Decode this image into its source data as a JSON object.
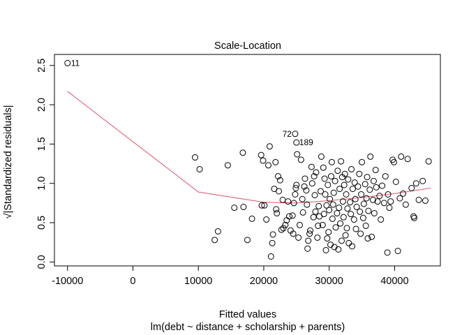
{
  "chart_data": {
    "type": "scatter",
    "title": "Scale-Location",
    "xlabel": "Fitted values",
    "sublabel": "lm(debt ~ distance + scholarship + parents)",
    "ylabel": "√|Standardized residuals|",
    "xlim": [
      -12000,
      47000
    ],
    "ylim": [
      -0.05,
      2.64
    ],
    "x_ticks": [
      -10000,
      0,
      10000,
      20000,
      30000,
      40000
    ],
    "x_tick_labels": [
      "-10000",
      "0",
      "10000",
      "20000",
      "30000",
      "40000"
    ],
    "y_ticks": [
      0.0,
      0.5,
      1.0,
      1.5,
      2.0,
      2.5
    ],
    "y_tick_labels": [
      "0.0",
      "0.5",
      "1.0",
      "1.5",
      "2.0",
      "2.5"
    ],
    "grid": false,
    "point_color": "#000000",
    "smooth_color": "#DF536B",
    "annotations": [
      {
        "label": "11",
        "x": -10000,
        "y": 2.53
      },
      {
        "label": "72",
        "x": 24800,
        "y": 1.63
      },
      {
        "label": "189",
        "x": 25000,
        "y": 1.52
      }
    ],
    "smooth": {
      "x": [
        -10000,
        10000,
        20000,
        25000,
        30000,
        35000,
        40000,
        45500
      ],
      "y": [
        2.17,
        0.89,
        0.76,
        0.75,
        0.78,
        0.82,
        0.87,
        0.94
      ]
    },
    "points": [
      [
        -10000,
        2.53
      ],
      [
        24800,
        1.63
      ],
      [
        25000,
        1.52
      ],
      [
        9500,
        1.33
      ],
      [
        10200,
        1.18
      ],
      [
        12500,
        0.28
      ],
      [
        13000,
        0.39
      ],
      [
        14500,
        1.23
      ],
      [
        15500,
        0.69
      ],
      [
        16800,
        1.39
      ],
      [
        16900,
        0.7
      ],
      [
        17500,
        0.28
      ],
      [
        18200,
        0.55
      ],
      [
        19600,
        1.36
      ],
      [
        19700,
        0.72
      ],
      [
        19900,
        1.29
      ],
      [
        20100,
        0.72
      ],
      [
        20400,
        0.54
      ],
      [
        20700,
        1.23
      ],
      [
        20900,
        1.47
      ],
      [
        21100,
        0.07
      ],
      [
        21300,
        0.24
      ],
      [
        21400,
        0.35
      ],
      [
        21600,
        0.93
      ],
      [
        21800,
        1.27
      ],
      [
        21900,
        0.67
      ],
      [
        22000,
        0.62
      ],
      [
        22200,
        1.09
      ],
      [
        22300,
        0.9
      ],
      [
        22500,
        1.04
      ],
      [
        22700,
        0.41
      ],
      [
        22900,
        0.79
      ],
      [
        23000,
        0.43
      ],
      [
        23300,
        0.47
      ],
      [
        23500,
        0.53
      ],
      [
        23700,
        0.77
      ],
      [
        23900,
        0.58
      ],
      [
        24100,
        0.4
      ],
      [
        24400,
        0.59
      ],
      [
        24500,
        0.36
      ],
      [
        24600,
        0.75
      ],
      [
        24800,
        0.86
      ],
      [
        24900,
        0.94
      ],
      [
        25000,
        0.98
      ],
      [
        25100,
        1.37
      ],
      [
        25300,
        0.31
      ],
      [
        25500,
        0.47
      ],
      [
        25700,
        1.3
      ],
      [
        25900,
        0.8
      ],
      [
        26000,
        0.63
      ],
      [
        26200,
        0.96
      ],
      [
        26300,
        1.06
      ],
      [
        26500,
        0.91
      ],
      [
        26600,
        0.73
      ],
      [
        26700,
        0.17
      ],
      [
        26800,
        0.27
      ],
      [
        27000,
        0.36
      ],
      [
        27100,
        0.4
      ],
      [
        27300,
        1.21
      ],
      [
        27400,
        1.0
      ],
      [
        27600,
        0.57
      ],
      [
        27700,
        1.09
      ],
      [
        27800,
        0.85
      ],
      [
        27900,
        0.64
      ],
      [
        28000,
        1.14
      ],
      [
        28200,
        0.31
      ],
      [
        28300,
        0.46
      ],
      [
        28400,
        0.71
      ],
      [
        28500,
        0.58
      ],
      [
        28700,
        0.9
      ],
      [
        28800,
        1.34
      ],
      [
        29000,
        0.47
      ],
      [
        29100,
        1.2
      ],
      [
        29200,
        0.61
      ],
      [
        29300,
        1.06
      ],
      [
        29400,
        0.86
      ],
      [
        29500,
        0.15
      ],
      [
        29600,
        0.72
      ],
      [
        29700,
        0.3
      ],
      [
        29800,
        0.98
      ],
      [
        29900,
        0.38
      ],
      [
        30000,
        0.66
      ],
      [
        30100,
        0.8
      ],
      [
        30200,
        0.22
      ],
      [
        30300,
        1.09
      ],
      [
        30400,
        1.27
      ],
      [
        30500,
        0.55
      ],
      [
        30600,
        0.73
      ],
      [
        30700,
        0.88
      ],
      [
        30800,
        0.19
      ],
      [
        30900,
        1.03
      ],
      [
        31000,
        0.44
      ],
      [
        31200,
        0.62
      ],
      [
        31300,
        1.16
      ],
      [
        31400,
        0.16
      ],
      [
        31500,
        0.69
      ],
      [
        31600,
        0.93
      ],
      [
        31700,
        0.49
      ],
      [
        31800,
        1.28
      ],
      [
        31900,
        0.27
      ],
      [
        32000,
        1.08
      ],
      [
        32100,
        0.77
      ],
      [
        32200,
        0.57
      ],
      [
        32300,
        0.98
      ],
      [
        32400,
        1.12
      ],
      [
        32500,
        0.34
      ],
      [
        32600,
        0.86
      ],
      [
        32700,
        0.43
      ],
      [
        32800,
        0.68
      ],
      [
        32900,
        1.05
      ],
      [
        33000,
        0.24
      ],
      [
        33200,
        0.76
      ],
      [
        33300,
        0.61
      ],
      [
        33400,
        1.18
      ],
      [
        33500,
        0.2
      ],
      [
        33600,
        0.93
      ],
      [
        33800,
        0.54
      ],
      [
        33900,
        1.01
      ],
      [
        34000,
        0.8
      ],
      [
        34100,
        0.42
      ],
      [
        34200,
        0.7
      ],
      [
        34400,
        0.96
      ],
      [
        34600,
        1.12
      ],
      [
        34700,
        0.64
      ],
      [
        34800,
        0.36
      ],
      [
        34900,
        0.86
      ],
      [
        35000,
        1.27
      ],
      [
        35200,
        0.56
      ],
      [
        35300,
        0.74
      ],
      [
        35500,
        0.99
      ],
      [
        35600,
        0.46
      ],
      [
        35700,
        0.81
      ],
      [
        35800,
        1.08
      ],
      [
        35900,
        0.3
      ],
      [
        36000,
        0.65
      ],
      [
        36200,
        0.92
      ],
      [
        36300,
        1.34
      ],
      [
        36500,
        0.32
      ],
      [
        36700,
        0.79
      ],
      [
        36800,
        1.03
      ],
      [
        36900,
        0.62
      ],
      [
        37100,
        1.17
      ],
      [
        37200,
        0.95
      ],
      [
        37400,
        0.77
      ],
      [
        37700,
        0.84
      ],
      [
        37900,
        0.54
      ],
      [
        38100,
        0.97
      ],
      [
        38400,
        0.75
      ],
      [
        38600,
        1.09
      ],
      [
        38900,
        0.12
      ],
      [
        39000,
        0.86
      ],
      [
        39200,
        0.69
      ],
      [
        39400,
        0.77
      ],
      [
        39700,
        1.3
      ],
      [
        39900,
        1.27
      ],
      [
        40200,
        1.02
      ],
      [
        40500,
        0.14
      ],
      [
        40800,
        0.81
      ],
      [
        41000,
        1.34
      ],
      [
        41300,
        0.87
      ],
      [
        41700,
        0.73
      ],
      [
        42000,
        1.31
      ],
      [
        42600,
        0.94
      ],
      [
        42900,
        0.58
      ],
      [
        43000,
        0.56
      ],
      [
        43300,
        1.0
      ],
      [
        43700,
        0.79
      ],
      [
        44300,
        1.03
      ],
      [
        44700,
        0.78
      ],
      [
        45200,
        1.28
      ]
    ]
  }
}
